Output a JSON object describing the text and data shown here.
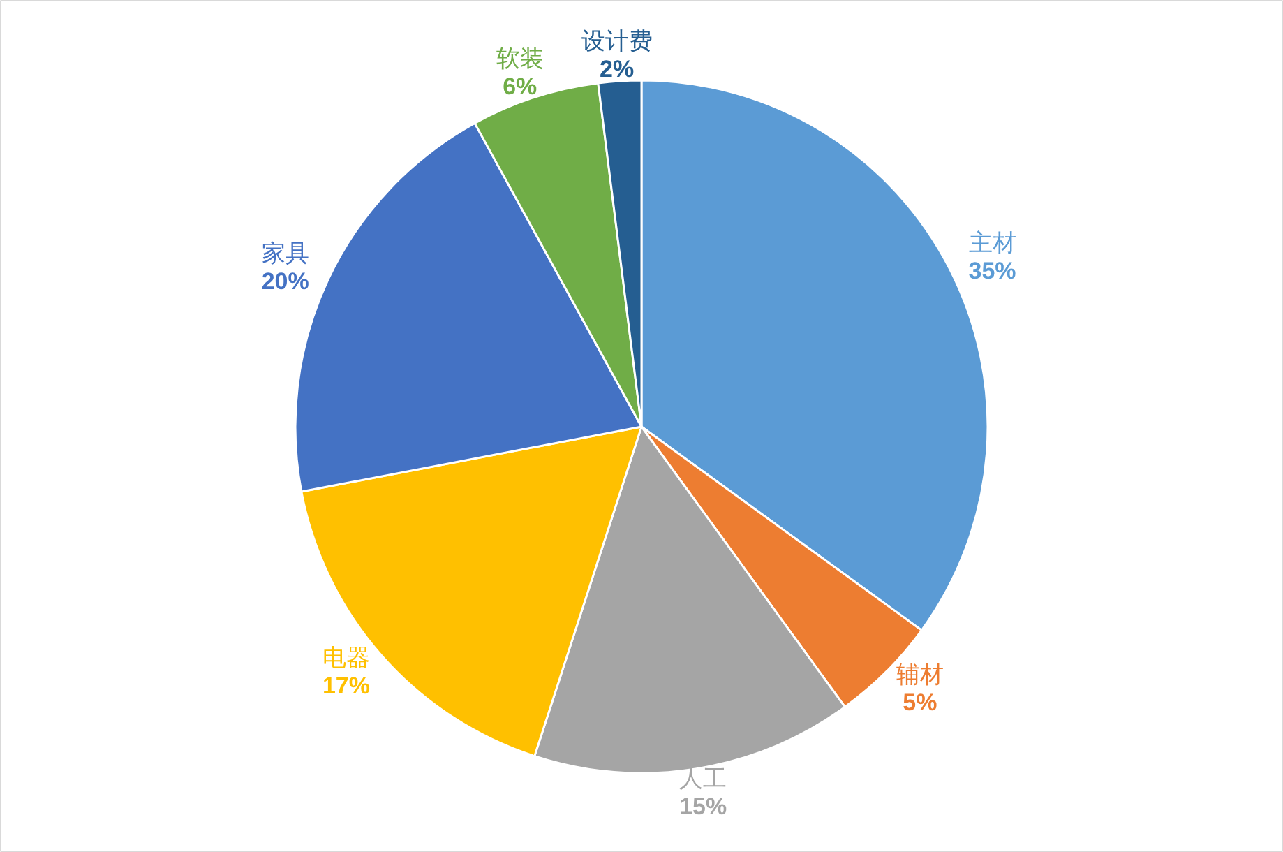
{
  "chart_data": {
    "type": "pie",
    "categories": [
      "主材",
      "辅材",
      "人工",
      "电器",
      "家具",
      "软装",
      "设计费"
    ],
    "values": [
      35,
      5,
      15,
      17,
      20,
      6,
      2
    ],
    "colors": [
      "#5b9bd5",
      "#ed7d31",
      "#a5a5a5",
      "#ffc000",
      "#4472c4",
      "#70ad47",
      "#255e91"
    ],
    "value_labels": [
      "35%",
      "5%",
      "15%",
      "17%",
      "20%",
      "6%",
      "2%"
    ]
  }
}
